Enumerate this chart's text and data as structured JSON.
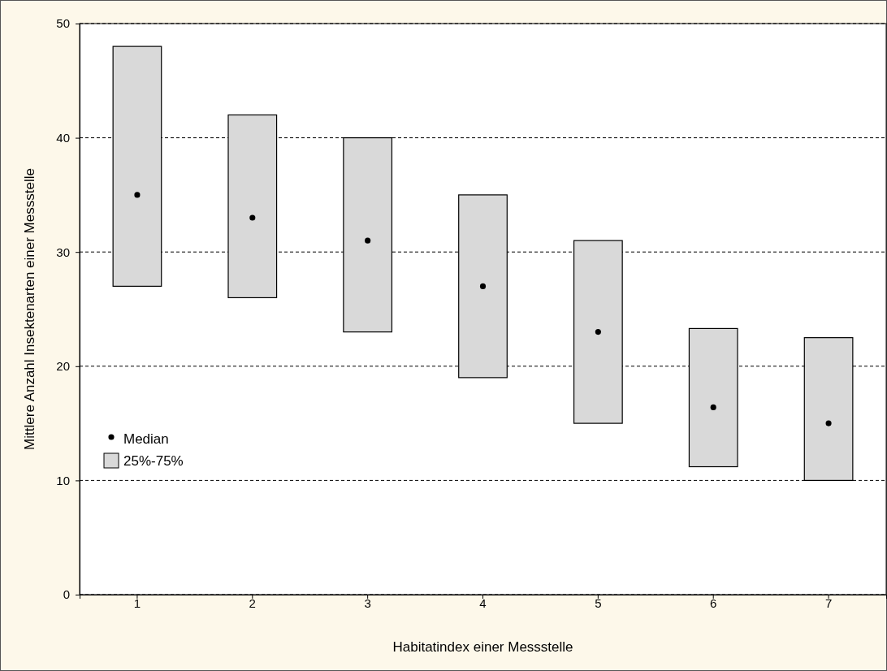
{
  "chart_data": {
    "type": "bar",
    "categories": [
      "1",
      "2",
      "3",
      "4",
      "5",
      "6",
      "7"
    ],
    "xlabel": "Habitatindex einer Messstelle",
    "ylabel": "Mittlere Anzahl Insektenarten einer Messstelle",
    "ylim": [
      0,
      50
    ],
    "yticks": [
      0,
      10,
      20,
      30,
      40,
      50
    ],
    "grid": "y",
    "legend": "left",
    "marker": "circle",
    "series": [
      {
        "name": "25%-75%",
        "color": "#d9d9d9",
        "base": [
          27,
          26,
          23,
          19,
          15,
          11.2,
          10
        ],
        "values": [
          21,
          16,
          17,
          16,
          16,
          12.1,
          12.5
        ]
      },
      {
        "name": "Median",
        "type": "scatter",
        "color": "#000000",
        "x": [
          "1",
          "2",
          "3",
          "4",
          "5",
          "6",
          "7"
        ],
        "values": [
          35,
          33,
          31,
          27,
          23,
          16.4,
          15
        ]
      }
    ]
  }
}
